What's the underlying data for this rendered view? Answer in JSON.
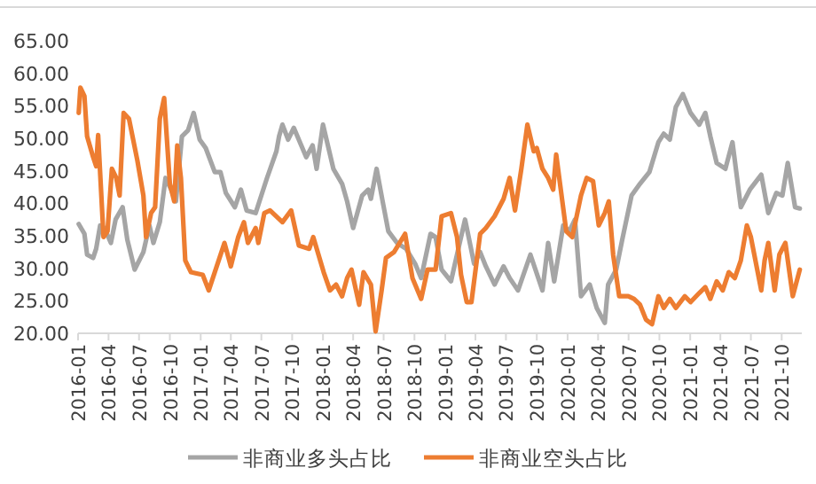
{
  "chart_data": {
    "type": "line",
    "legend": "bottom",
    "line_style": "solid",
    "marker": "none",
    "xlim": [
      "2016-01-01",
      "2021-11-30"
    ],
    "ylim": [
      20,
      65
    ],
    "yticks": [
      {
        "value": 20,
        "label": "20.00"
      },
      {
        "value": 25,
        "label": "25.00"
      },
      {
        "value": 30,
        "label": "30.00"
      },
      {
        "value": 35,
        "label": "35.00"
      },
      {
        "value": 40,
        "label": "40.00"
      },
      {
        "value": 45,
        "label": "45.00"
      },
      {
        "value": 50,
        "label": "50.00"
      },
      {
        "value": 55,
        "label": "55.00"
      },
      {
        "value": 60,
        "label": "60.00"
      },
      {
        "value": 65,
        "label": "65.00"
      }
    ],
    "xticks": [
      "2016-01",
      "2016-04",
      "2016-07",
      "2016-10",
      "2017-01",
      "2017-04",
      "2017-07",
      "2017-10",
      "2018-01",
      "2018-04",
      "2018-07",
      "2018-10",
      "2019-01",
      "2019-04",
      "2019-07",
      "2019-10",
      "2020-01",
      "2020-04",
      "2020-07",
      "2020-10",
      "2021-01",
      "2021-04",
      "2021-07",
      "2021-10"
    ],
    "series": [
      {
        "name": "非商业多头占比",
        "color": "#a5a5a5",
        "x": [
          "2016-01-03",
          "2016-01-20",
          "2016-01-28",
          "2016-02-15",
          "2016-02-24",
          "2016-03-07",
          "2016-03-20",
          "2016-04-08",
          "2016-04-22",
          "2016-05-13",
          "2016-05-27",
          "2016-06-18",
          "2016-07-14",
          "2016-08-01",
          "2016-08-13",
          "2016-09-01",
          "2016-09-18",
          "2016-10-05",
          "2016-10-19",
          "2016-11-06",
          "2016-11-24",
          "2016-12-11",
          "2016-12-29",
          "2017-01-16",
          "2017-02-12",
          "2017-03-01",
          "2017-03-17",
          "2017-04-13",
          "2017-05-01",
          "2017-05-18",
          "2017-06-14",
          "2017-07-01",
          "2017-07-18",
          "2017-08-15",
          "2017-08-23",
          "2017-09-02",
          "2017-09-19",
          "2017-10-06",
          "2017-11-12",
          "2017-12-01",
          "2017-12-13",
          "2018-01-01",
          "2018-02-01",
          "2018-02-27",
          "2018-03-14",
          "2018-04-01",
          "2018-04-28",
          "2018-05-16",
          "2018-05-24",
          "2018-06-10",
          "2018-06-28",
          "2018-07-15",
          "2018-08-10",
          "2018-09-06",
          "2018-10-03",
          "2018-10-21",
          "2018-11-18",
          "2018-12-03",
          "2018-12-21",
          "2019-01-18",
          "2019-02-05",
          "2019-03-01",
          "2019-03-28",
          "2019-04-15",
          "2019-05-02",
          "2019-05-28",
          "2019-06-24",
          "2019-07-12",
          "2019-08-06",
          "2019-09-12",
          "2019-10-18",
          "2019-11-04",
          "2019-11-22",
          "2019-12-19",
          "2020-01-06",
          "2020-01-23",
          "2020-02-10",
          "2020-03-07",
          "2020-03-28",
          "2020-04-21",
          "2020-05-01",
          "2020-05-25",
          "2020-06-12",
          "2020-07-10",
          "2020-08-04",
          "2020-09-01",
          "2020-09-28",
          "2020-10-14",
          "2020-11-01",
          "2020-11-19",
          "2020-12-10",
          "2021-01-02",
          "2021-01-28",
          "2021-02-15",
          "2021-03-02",
          "2021-03-21",
          "2021-04-16",
          "2021-05-07",
          "2021-06-01",
          "2021-06-28",
          "2021-08-01",
          "2021-08-22",
          "2021-09-15",
          "2021-10-03",
          "2021-10-19",
          "2021-11-10",
          "2021-11-24"
        ],
        "values": [
          36.8,
          35.3,
          32.1,
          31.6,
          33.0,
          36.6,
          36.2,
          33.9,
          37.5,
          39.4,
          34.4,
          29.8,
          32.5,
          36.6,
          33.9,
          37.1,
          43.9,
          42.1,
          40.3,
          50.3,
          51.2,
          53.9,
          49.8,
          48.5,
          44.8,
          44.8,
          41.6,
          39.4,
          42.1,
          38.9,
          38.5,
          41.2,
          43.9,
          48.0,
          50.3,
          52.1,
          49.8,
          51.6,
          47.1,
          48.9,
          45.3,
          52.1,
          45.3,
          43.0,
          40.3,
          36.2,
          41.2,
          42.1,
          40.7,
          45.3,
          40.3,
          35.7,
          33.9,
          33.0,
          30.7,
          28.5,
          35.3,
          34.8,
          29.8,
          28.0,
          32.1,
          37.5,
          30.7,
          32.5,
          30.3,
          27.5,
          30.3,
          28.5,
          26.6,
          32.1,
          26.6,
          33.9,
          28.0,
          36.6,
          35.7,
          37.5,
          25.7,
          27.5,
          23.9,
          21.6,
          27.5,
          29.8,
          34.4,
          41.2,
          43.0,
          44.8,
          49.4,
          50.7,
          49.8,
          54.8,
          56.8,
          53.9,
          52.1,
          53.9,
          50.3,
          46.2,
          45.3,
          49.4,
          39.4,
          42.1,
          44.4,
          38.5,
          41.6,
          41.2,
          46.2,
          39.4,
          39.2
        ]
      },
      {
        "name": "非商业空头占比",
        "color": "#ed7d31",
        "x": [
          "2016-01-03",
          "2016-01-08",
          "2016-01-20",
          "2016-01-28",
          "2016-02-15",
          "2016-02-24",
          "2016-03-01",
          "2016-03-17",
          "2016-03-29",
          "2016-04-11",
          "2016-04-24",
          "2016-05-04",
          "2016-05-16",
          "2016-06-01",
          "2016-06-26",
          "2016-07-14",
          "2016-07-22",
          "2016-08-06",
          "2016-08-18",
          "2016-09-01",
          "2016-09-14",
          "2016-10-01",
          "2016-10-14",
          "2016-10-23",
          "2016-11-03",
          "2016-11-16",
          "2016-12-03",
          "2016-12-20",
          "2017-01-07",
          "2017-01-25",
          "2017-02-12",
          "2017-03-13",
          "2017-04-01",
          "2017-04-23",
          "2017-05-10",
          "2017-05-22",
          "2017-06-14",
          "2017-06-22",
          "2017-07-10",
          "2017-07-27",
          "2017-09-02",
          "2017-09-28",
          "2017-10-21",
          "2017-11-21",
          "2017-12-03",
          "2018-01-03",
          "2018-01-22",
          "2018-02-09",
          "2018-02-27",
          "2018-03-14",
          "2018-03-27",
          "2018-04-19",
          "2018-05-02",
          "2018-05-24",
          "2018-06-07",
          "2018-06-25",
          "2018-07-08",
          "2018-08-01",
          "2018-09-03",
          "2018-09-25",
          "2018-10-21",
          "2018-11-09",
          "2018-12-03",
          "2018-12-21",
          "2019-01-18",
          "2019-02-05",
          "2019-02-17",
          "2019-03-06",
          "2019-03-20",
          "2019-04-15",
          "2019-05-02",
          "2019-05-28",
          "2019-06-24",
          "2019-07-12",
          "2019-07-28",
          "2019-08-16",
          "2019-09-03",
          "2019-09-22",
          "2019-10-01",
          "2019-10-18",
          "2019-11-04",
          "2019-11-19",
          "2019-11-28",
          "2019-12-28",
          "2020-01-15",
          "2020-02-10",
          "2020-02-27",
          "2020-03-17",
          "2020-04-03",
          "2020-04-21",
          "2020-05-03",
          "2020-05-16",
          "2020-06-03",
          "2020-06-30",
          "2020-07-17",
          "2020-08-04",
          "2020-08-22",
          "2020-09-09",
          "2020-09-28",
          "2020-10-14",
          "2020-11-01",
          "2020-11-19",
          "2020-12-16",
          "2021-01-02",
          "2021-01-28",
          "2021-02-15",
          "2021-03-02",
          "2021-03-21",
          "2021-04-08",
          "2021-04-26",
          "2021-05-14",
          "2021-06-01",
          "2021-06-19",
          "2021-07-01",
          "2021-08-01",
          "2021-08-11",
          "2021-08-22",
          "2021-09-10",
          "2021-09-24",
          "2021-10-12",
          "2021-11-03",
          "2021-11-24"
        ],
        "values": [
          53.9,
          57.8,
          56.5,
          50.3,
          47.1,
          45.7,
          50.5,
          34.8,
          35.7,
          45.3,
          43.9,
          41.2,
          53.9,
          53.0,
          46.6,
          41.2,
          34.8,
          38.5,
          39.4,
          53.0,
          56.2,
          43.0,
          40.3,
          48.9,
          43.9,
          31.2,
          29.4,
          29.2,
          29.0,
          26.6,
          29.4,
          33.9,
          30.3,
          34.8,
          37.1,
          33.9,
          36.2,
          33.9,
          38.5,
          38.9,
          37.1,
          38.9,
          33.5,
          33.0,
          34.8,
          29.4,
          26.6,
          27.5,
          25.7,
          28.5,
          29.8,
          24.4,
          29.4,
          27.5,
          20.3,
          26.6,
          31.6,
          32.5,
          35.3,
          28.5,
          25.3,
          29.8,
          29.8,
          38.0,
          38.5,
          34.8,
          29.0,
          24.8,
          24.8,
          35.3,
          36.2,
          38.0,
          40.7,
          43.9,
          38.9,
          45.3,
          52.1,
          48.0,
          48.5,
          45.3,
          43.9,
          42.1,
          47.5,
          35.7,
          34.8,
          41.2,
          43.9,
          43.4,
          36.6,
          38.5,
          40.3,
          32.1,
          25.7,
          25.7,
          25.3,
          24.4,
          22.1,
          21.4,
          25.7,
          23.9,
          25.3,
          23.9,
          25.7,
          24.8,
          26.2,
          27.1,
          25.3,
          28.0,
          26.6,
          29.4,
          28.5,
          31.2,
          36.6,
          34.8,
          26.6,
          31.2,
          33.9,
          26.6,
          32.1,
          33.9,
          25.7,
          29.8
        ]
      }
    ]
  }
}
